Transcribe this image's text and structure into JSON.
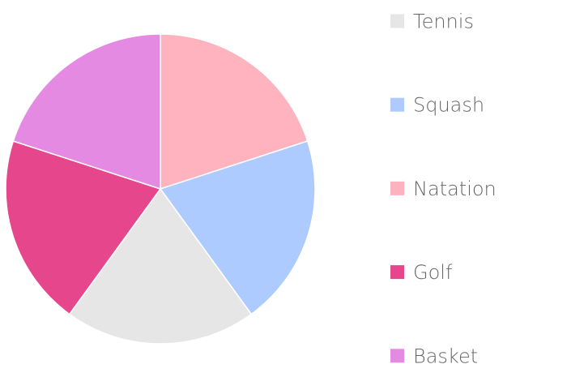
{
  "chart_data": {
    "type": "pie",
    "legend_position": "right",
    "slices": [
      {
        "label": "Tennis",
        "value": 20,
        "color": "#e6e6e6"
      },
      {
        "label": "Squash",
        "value": 20,
        "color": "#adcbff"
      },
      {
        "label": "Natation",
        "value": 20,
        "color": "#ffb3bf"
      },
      {
        "label": "Golf",
        "value": 20,
        "color": "#e6478c"
      },
      {
        "label": "Basket",
        "value": 20,
        "color": "#e58ae3"
      }
    ]
  }
}
